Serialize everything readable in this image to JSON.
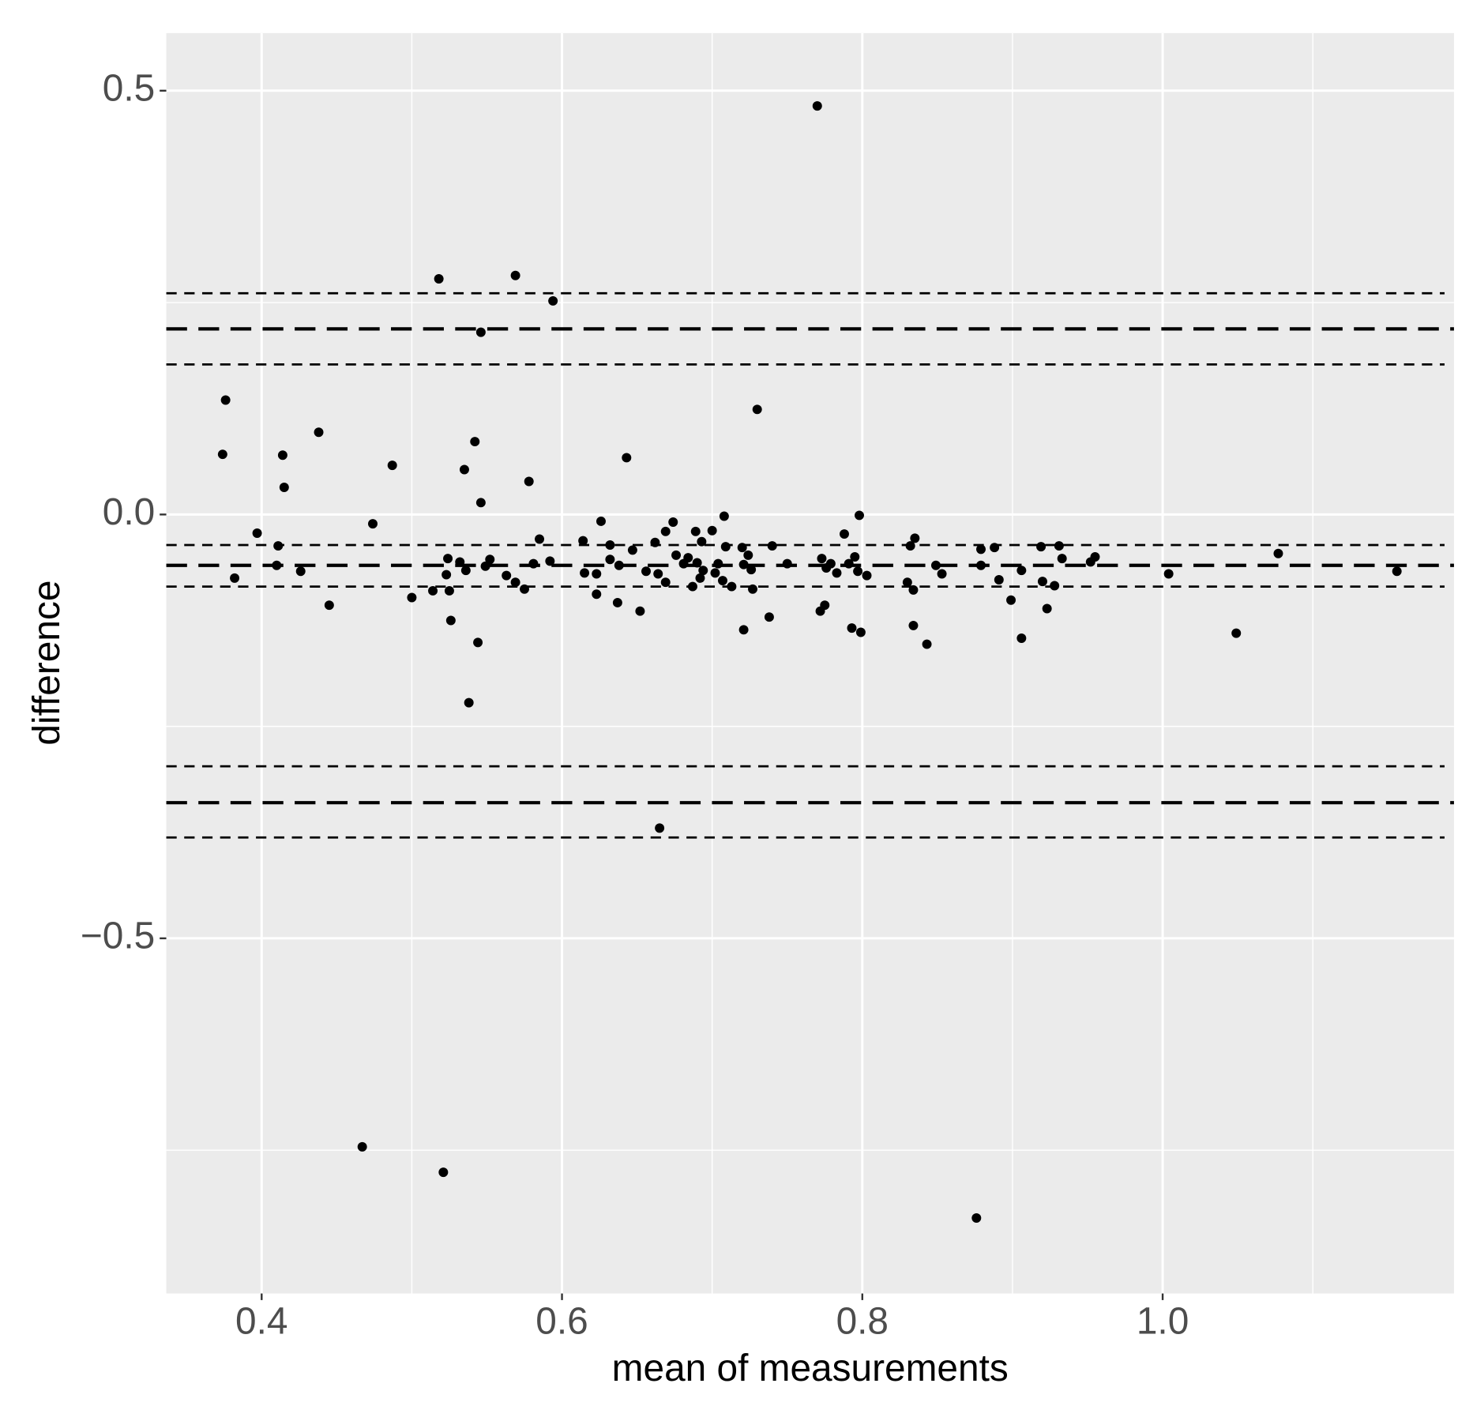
{
  "chart_data": {
    "type": "scatter",
    "x_label": "mean of measurements",
    "y_label": "difference",
    "color": "#000000",
    "panel_color": "#ebebeb",
    "grid": true,
    "xlim": [
      0.3365,
      1.194
    ],
    "ylim": [
      -0.919,
      0.568
    ],
    "xticks": [
      0.4,
      0.6,
      0.8,
      {
        "value": 1,
        "label": "1.0"
      }
    ],
    "yticks": [
      {
        "value": -0.5,
        "label": "−0.5"
      },
      {
        "value": 0,
        "label": "0.0"
      },
      0.5
    ],
    "x_minor_ticks": [
      0.5,
      0.7,
      0.9,
      1.1
    ],
    "y_minor_ticks": [
      -0.75,
      -0.25,
      0.25
    ],
    "lines": [
      {
        "value": 0.261,
        "dash": "short"
      },
      {
        "value": 0.219,
        "dash": "long"
      },
      {
        "value": 0.177,
        "dash": "short"
      },
      {
        "value": -0.036,
        "dash": "short"
      },
      {
        "value": -0.06,
        "dash": "long"
      },
      {
        "value": -0.085,
        "dash": "short"
      },
      {
        "value": -0.297,
        "dash": "short"
      },
      {
        "value": -0.34,
        "dash": "long"
      },
      {
        "value": -0.381,
        "dash": "short"
      }
    ],
    "x": [
      0.77,
      0.518,
      0.569,
      0.594,
      0.546,
      0.376,
      0.73,
      0.438,
      0.374,
      0.414,
      0.542,
      0.643,
      0.487,
      0.535,
      0.415,
      0.578,
      0.546,
      0.397,
      0.474,
      0.382,
      0.411,
      0.41,
      0.426,
      0.445,
      0.5,
      0.514,
      0.524,
      0.523,
      0.525,
      0.526,
      0.532,
      0.536,
      0.544,
      0.538,
      0.549,
      0.552,
      0.563,
      0.569,
      0.575,
      0.581,
      0.585,
      0.592,
      0.614,
      0.615,
      0.623,
      0.623,
      0.626,
      0.632,
      0.632,
      0.637,
      0.638,
      0.647,
      0.652,
      0.656,
      0.662,
      0.664,
      0.665,
      0.669,
      0.669,
      0.674,
      0.676,
      0.681,
      0.684,
      0.687,
      0.689,
      0.69,
      0.692,
      0.693,
      0.694,
      0.7,
      0.702,
      0.704,
      0.707,
      0.708,
      0.709,
      0.713,
      0.721,
      0.72,
      0.721,
      0.724,
      0.726,
      0.727,
      0.738,
      0.74,
      0.75,
      0.772,
      0.773,
      0.775,
      0.776,
      0.779,
      0.783,
      0.788,
      0.791,
      0.793,
      0.795,
      0.797,
      0.798,
      0.799,
      0.803,
      0.83,
      0.832,
      0.834,
      0.835,
      0.834,
      0.843,
      0.849,
      0.853,
      0.876,
      0.879,
      0.879,
      0.888,
      0.891,
      0.899,
      0.906,
      0.906,
      0.919,
      0.92,
      0.923,
      0.928,
      0.931,
      0.933,
      0.952,
      0.955,
      1.004,
      1.049,
      1.077,
      1.156,
      0.467,
      0.521
    ],
    "values": [
      0.482,
      0.278,
      0.282,
      0.252,
      0.215,
      0.135,
      0.124,
      0.097,
      0.071,
      0.07,
      0.086,
      0.067,
      0.058,
      0.053,
      0.032,
      0.039,
      0.014,
      -0.022,
      -0.011,
      -0.075,
      -0.037,
      -0.06,
      -0.067,
      -0.107,
      -0.098,
      -0.09,
      -0.052,
      -0.071,
      -0.09,
      -0.125,
      -0.056,
      -0.066,
      -0.151,
      -0.222,
      -0.061,
      -0.053,
      -0.072,
      -0.08,
      -0.088,
      -0.058,
      -0.029,
      -0.055,
      -0.031,
      -0.069,
      -0.07,
      -0.094,
      -0.008,
      -0.036,
      -0.053,
      -0.104,
      -0.06,
      -0.042,
      -0.114,
      -0.067,
      -0.033,
      -0.07,
      -0.37,
      -0.02,
      -0.08,
      -0.009,
      -0.048,
      -0.058,
      -0.051,
      -0.085,
      -0.02,
      -0.057,
      -0.075,
      -0.032,
      -0.066,
      -0.019,
      -0.069,
      -0.058,
      -0.078,
      -0.002,
      -0.038,
      -0.085,
      -0.059,
      -0.039,
      -0.136,
      -0.048,
      -0.065,
      -0.088,
      -0.121,
      -0.037,
      -0.058,
      -0.114,
      -0.052,
      -0.107,
      -0.063,
      -0.058,
      -0.069,
      -0.023,
      -0.058,
      -0.134,
      -0.05,
      -0.067,
      -0.001,
      -0.139,
      -0.072,
      -0.08,
      -0.037,
      -0.089,
      -0.028,
      -0.131,
      -0.153,
      -0.06,
      -0.07,
      -0.83,
      -0.041,
      -0.06,
      -0.039,
      -0.077,
      -0.101,
      -0.066,
      -0.146,
      -0.038,
      -0.079,
      -0.111,
      -0.084,
      -0.037,
      -0.052,
      -0.056,
      -0.05,
      -0.07,
      -0.14,
      -0.046,
      -0.067,
      -0.746,
      -0.776
    ]
  }
}
